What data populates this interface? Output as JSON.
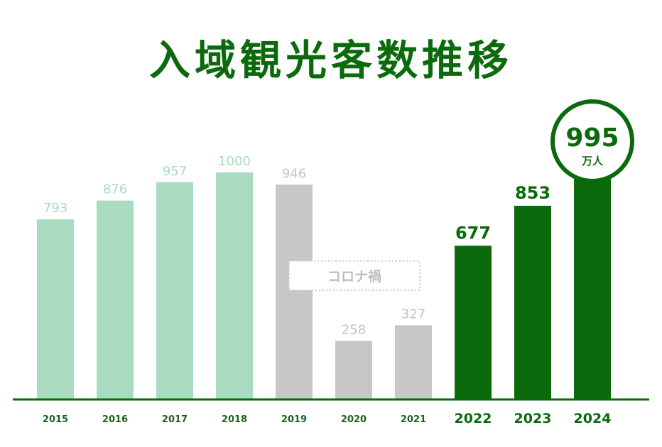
{
  "title": "入域観光客数推移",
  "colors": {
    "pre": "#a8dbbf",
    "covid": "#c7c7c7",
    "recent": "#0b6a0b",
    "pre_label": "#a8dbbf",
    "covid_label": "#c2c2c2",
    "covid_box_text": "#bdbdbd",
    "axis": "#0b6a0b",
    "tick": "#1f5e1f"
  },
  "chart_data": {
    "type": "bar",
    "categories": [
      "2015",
      "2016",
      "2017",
      "2018",
      "2019",
      "2020",
      "2021",
      "2022",
      "2023",
      "2024"
    ],
    "values": [
      793,
      876,
      957,
      1000,
      946,
      258,
      327,
      677,
      853,
      995
    ],
    "groups": [
      "pre",
      "pre",
      "pre",
      "pre",
      "covid",
      "covid",
      "covid",
      "recent",
      "recent",
      "recent"
    ],
    "ylim": [
      0,
      1000
    ],
    "grid": false,
    "annotations": [
      {
        "text": "コロナ禍"
      },
      {
        "text": "万人"
      }
    ]
  }
}
